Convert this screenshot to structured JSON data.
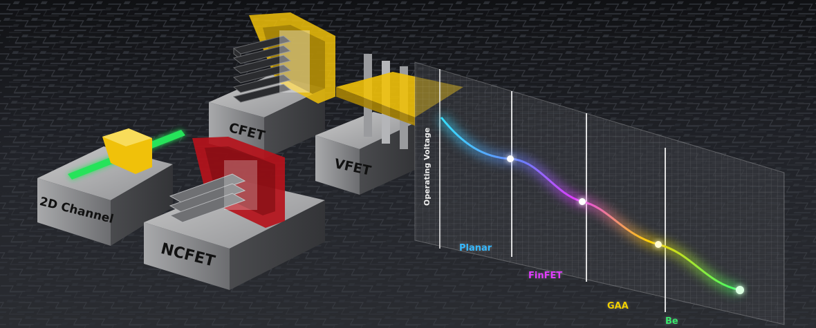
{
  "blocks": {
    "cfet": "CFET",
    "vfet": "VFET",
    "two_d_channel": "2D Channel",
    "ncfet": "NCFET"
  },
  "chart": {
    "y_axis_label": "Operating Voltage",
    "stages": [
      "Planar",
      "FinFET",
      "GAA",
      "Be"
    ]
  },
  "colors": {
    "planar": "#36b9ff",
    "finfet": "#e23cff",
    "gaa": "#f2d000",
    "beyond": "#39e66b",
    "gate_yellow": "#f0c10a",
    "gate_red": "#b5121b",
    "channel_green": "#27e35a"
  }
}
